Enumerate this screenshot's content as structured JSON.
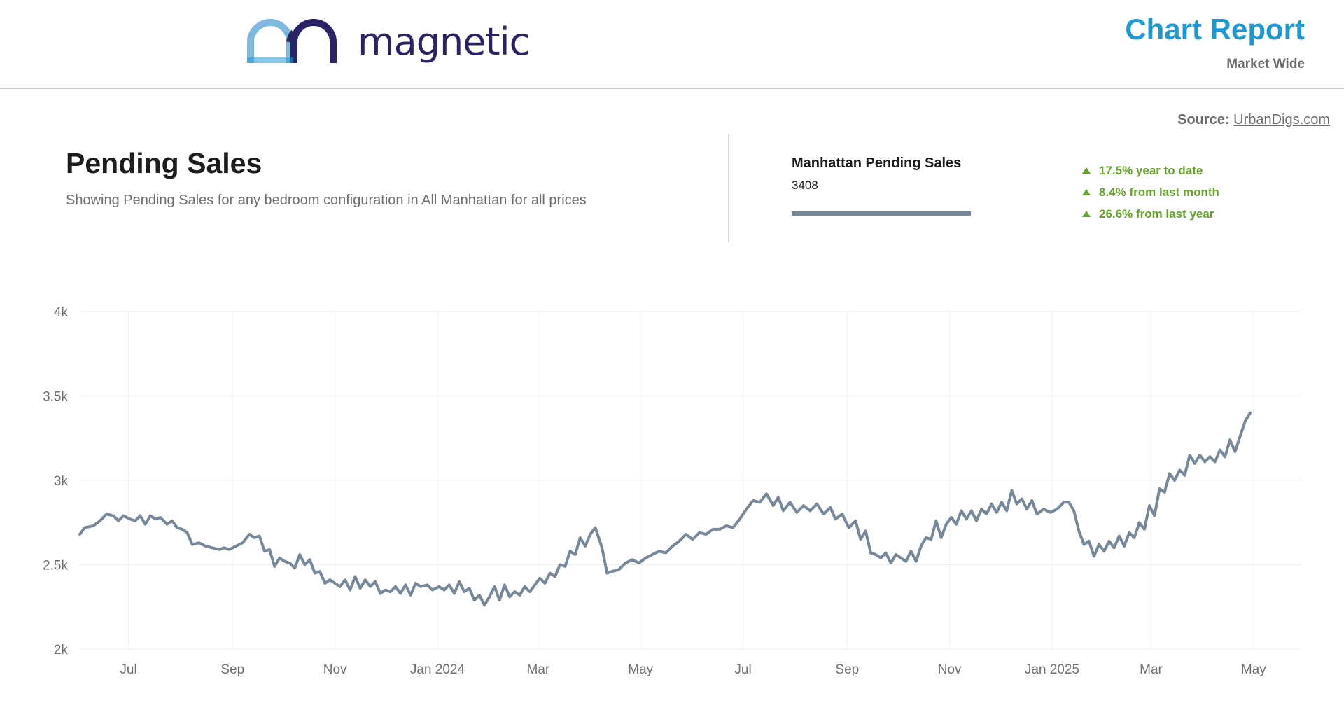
{
  "header": {
    "logo_text": "magnetic",
    "report_title": "Chart Report",
    "report_subtitle": "Market Wide"
  },
  "source": {
    "label": "Source:",
    "link": "UrbanDigs.com"
  },
  "page": {
    "title": "Pending Sales",
    "subtitle": "Showing Pending Sales for any bedroom configuration in All Manhattan for all prices"
  },
  "summary": {
    "series_name": "Manhattan Pending Sales",
    "series_value": "3408",
    "series_color": "#76889a",
    "stats": [
      "17.5% year to date",
      "8.4% from last month",
      "26.6% from last year"
    ],
    "stat_color": "#63a52b"
  },
  "colors": {
    "brand": "#2a2466",
    "accent": "#1d9ad1",
    "logo_light": "#7fb8e1"
  },
  "chart_data": {
    "type": "line",
    "ylim": [
      2000,
      4000
    ],
    "yticks": [
      {
        "value": 2000,
        "label": "2k"
      },
      {
        "value": 2500,
        "label": "2.5k"
      },
      {
        "value": 3000,
        "label": "3k"
      },
      {
        "value": 3500,
        "label": "3.5k"
      },
      {
        "value": 4000,
        "label": "4k"
      }
    ],
    "xlim": [
      "2023-06-02",
      "2025-05-29"
    ],
    "xticks": [
      {
        "date": "2023-07-01",
        "label": "Jul"
      },
      {
        "date": "2023-09-01",
        "label": "Sep"
      },
      {
        "date": "2023-11-01",
        "label": "Nov"
      },
      {
        "date": "2024-01-01",
        "label": "Jan 2024"
      },
      {
        "date": "2024-03-01",
        "label": "Mar"
      },
      {
        "date": "2024-05-01",
        "label": "May"
      },
      {
        "date": "2024-07-01",
        "label": "Jul"
      },
      {
        "date": "2024-09-01",
        "label": "Sep"
      },
      {
        "date": "2024-11-01",
        "label": "Nov"
      },
      {
        "date": "2025-01-01",
        "label": "Jan 2025"
      },
      {
        "date": "2025-03-01",
        "label": "Mar"
      },
      {
        "date": "2025-05-01",
        "label": "May"
      }
    ],
    "grid": true,
    "series": [
      {
        "color": "#76889a",
        "points": [
          [
            "2023-06-02",
            2680
          ],
          [
            "2023-06-05",
            2720
          ],
          [
            "2023-06-10",
            2730
          ],
          [
            "2023-06-14",
            2760
          ],
          [
            "2023-06-18",
            2800
          ],
          [
            "2023-06-22",
            2790
          ],
          [
            "2023-06-25",
            2760
          ],
          [
            "2023-06-28",
            2790
          ],
          [
            "2023-07-02",
            2770
          ],
          [
            "2023-07-05",
            2760
          ],
          [
            "2023-07-08",
            2790
          ],
          [
            "2023-07-11",
            2740
          ],
          [
            "2023-07-14",
            2790
          ],
          [
            "2023-07-17",
            2770
          ],
          [
            "2023-07-20",
            2780
          ],
          [
            "2023-07-24",
            2740
          ],
          [
            "2023-07-27",
            2760
          ],
          [
            "2023-07-30",
            2720
          ],
          [
            "2023-08-02",
            2710
          ],
          [
            "2023-08-05",
            2690
          ],
          [
            "2023-08-08",
            2620
          ],
          [
            "2023-08-12",
            2630
          ],
          [
            "2023-08-16",
            2610
          ],
          [
            "2023-08-20",
            2600
          ],
          [
            "2023-08-24",
            2590
          ],
          [
            "2023-08-27",
            2600
          ],
          [
            "2023-08-30",
            2590
          ],
          [
            "2023-09-03",
            2610
          ],
          [
            "2023-09-07",
            2630
          ],
          [
            "2023-09-11",
            2680
          ],
          [
            "2023-09-14",
            2660
          ],
          [
            "2023-09-17",
            2670
          ],
          [
            "2023-09-20",
            2580
          ],
          [
            "2023-09-23",
            2590
          ],
          [
            "2023-09-26",
            2490
          ],
          [
            "2023-09-29",
            2540
          ],
          [
            "2023-10-02",
            2520
          ],
          [
            "2023-10-05",
            2510
          ],
          [
            "2023-10-08",
            2480
          ],
          [
            "2023-10-11",
            2560
          ],
          [
            "2023-10-14",
            2500
          ],
          [
            "2023-10-17",
            2530
          ],
          [
            "2023-10-20",
            2450
          ],
          [
            "2023-10-23",
            2460
          ],
          [
            "2023-10-26",
            2390
          ],
          [
            "2023-10-29",
            2410
          ],
          [
            "2023-11-01",
            2390
          ],
          [
            "2023-11-04",
            2370
          ],
          [
            "2023-11-07",
            2410
          ],
          [
            "2023-11-10",
            2350
          ],
          [
            "2023-11-13",
            2430
          ],
          [
            "2023-11-16",
            2360
          ],
          [
            "2023-11-19",
            2410
          ],
          [
            "2023-11-22",
            2370
          ],
          [
            "2023-11-25",
            2400
          ],
          [
            "2023-11-28",
            2330
          ],
          [
            "2023-12-01",
            2350
          ],
          [
            "2023-12-04",
            2340
          ],
          [
            "2023-12-07",
            2370
          ],
          [
            "2023-12-10",
            2330
          ],
          [
            "2023-12-13",
            2380
          ],
          [
            "2023-12-16",
            2320
          ],
          [
            "2023-12-19",
            2390
          ],
          [
            "2023-12-22",
            2370
          ],
          [
            "2023-12-26",
            2380
          ],
          [
            "2023-12-29",
            2350
          ],
          [
            "2024-01-02",
            2370
          ],
          [
            "2024-01-05",
            2350
          ],
          [
            "2024-01-08",
            2380
          ],
          [
            "2024-01-11",
            2330
          ],
          [
            "2024-01-14",
            2400
          ],
          [
            "2024-01-17",
            2340
          ],
          [
            "2024-01-20",
            2360
          ],
          [
            "2024-01-23",
            2290
          ],
          [
            "2024-01-26",
            2320
          ],
          [
            "2024-01-29",
            2260
          ],
          [
            "2024-02-01",
            2310
          ],
          [
            "2024-02-04",
            2370
          ],
          [
            "2024-02-07",
            2290
          ],
          [
            "2024-02-10",
            2380
          ],
          [
            "2024-02-13",
            2310
          ],
          [
            "2024-02-16",
            2340
          ],
          [
            "2024-02-19",
            2320
          ],
          [
            "2024-02-22",
            2370
          ],
          [
            "2024-02-25",
            2340
          ],
          [
            "2024-02-28",
            2380
          ],
          [
            "2024-03-02",
            2420
          ],
          [
            "2024-03-05",
            2390
          ],
          [
            "2024-03-08",
            2450
          ],
          [
            "2024-03-11",
            2430
          ],
          [
            "2024-03-14",
            2500
          ],
          [
            "2024-03-17",
            2490
          ],
          [
            "2024-03-20",
            2580
          ],
          [
            "2024-03-23",
            2560
          ],
          [
            "2024-03-26",
            2660
          ],
          [
            "2024-03-29",
            2610
          ],
          [
            "2024-04-01",
            2680
          ],
          [
            "2024-04-04",
            2720
          ],
          [
            "2024-04-08",
            2600
          ],
          [
            "2024-04-11",
            2450
          ],
          [
            "2024-04-14",
            2460
          ],
          [
            "2024-04-18",
            2470
          ],
          [
            "2024-04-22",
            2510
          ],
          [
            "2024-04-26",
            2530
          ],
          [
            "2024-04-30",
            2510
          ],
          [
            "2024-05-04",
            2540
          ],
          [
            "2024-05-08",
            2560
          ],
          [
            "2024-05-12",
            2580
          ],
          [
            "2024-05-16",
            2570
          ],
          [
            "2024-05-20",
            2610
          ],
          [
            "2024-05-24",
            2640
          ],
          [
            "2024-05-28",
            2680
          ],
          [
            "2024-06-01",
            2650
          ],
          [
            "2024-06-05",
            2690
          ],
          [
            "2024-06-09",
            2680
          ],
          [
            "2024-06-13",
            2710
          ],
          [
            "2024-06-17",
            2710
          ],
          [
            "2024-06-21",
            2730
          ],
          [
            "2024-06-25",
            2720
          ],
          [
            "2024-06-29",
            2770
          ],
          [
            "2024-07-03",
            2830
          ],
          [
            "2024-07-07",
            2880
          ],
          [
            "2024-07-11",
            2870
          ],
          [
            "2024-07-15",
            2920
          ],
          [
            "2024-07-19",
            2850
          ],
          [
            "2024-07-22",
            2900
          ],
          [
            "2024-07-25",
            2820
          ],
          [
            "2024-07-29",
            2870
          ],
          [
            "2024-08-02",
            2810
          ],
          [
            "2024-08-06",
            2850
          ],
          [
            "2024-08-10",
            2820
          ],
          [
            "2024-08-14",
            2860
          ],
          [
            "2024-08-18",
            2800
          ],
          [
            "2024-08-22",
            2840
          ],
          [
            "2024-08-25",
            2770
          ],
          [
            "2024-08-29",
            2800
          ],
          [
            "2024-09-02",
            2720
          ],
          [
            "2024-09-06",
            2760
          ],
          [
            "2024-09-09",
            2650
          ],
          [
            "2024-09-12",
            2700
          ],
          [
            "2024-09-15",
            2570
          ],
          [
            "2024-09-18",
            2560
          ],
          [
            "2024-09-21",
            2540
          ],
          [
            "2024-09-24",
            2570
          ],
          [
            "2024-09-27",
            2510
          ],
          [
            "2024-09-30",
            2560
          ],
          [
            "2024-10-03",
            2540
          ],
          [
            "2024-10-06",
            2520
          ],
          [
            "2024-10-09",
            2580
          ],
          [
            "2024-10-12",
            2520
          ],
          [
            "2024-10-15",
            2610
          ],
          [
            "2024-10-18",
            2660
          ],
          [
            "2024-10-21",
            2650
          ],
          [
            "2024-10-24",
            2760
          ],
          [
            "2024-10-27",
            2660
          ],
          [
            "2024-10-30",
            2740
          ],
          [
            "2024-11-02",
            2780
          ],
          [
            "2024-11-05",
            2740
          ],
          [
            "2024-11-08",
            2820
          ],
          [
            "2024-11-11",
            2770
          ],
          [
            "2024-11-14",
            2820
          ],
          [
            "2024-11-17",
            2760
          ],
          [
            "2024-11-20",
            2830
          ],
          [
            "2024-11-23",
            2800
          ],
          [
            "2024-11-26",
            2860
          ],
          [
            "2024-11-29",
            2810
          ],
          [
            "2024-12-02",
            2870
          ],
          [
            "2024-12-05",
            2820
          ],
          [
            "2024-12-08",
            2940
          ],
          [
            "2024-12-11",
            2860
          ],
          [
            "2024-12-14",
            2890
          ],
          [
            "2024-12-17",
            2830
          ],
          [
            "2024-12-20",
            2880
          ],
          [
            "2024-12-23",
            2800
          ],
          [
            "2024-12-27",
            2830
          ],
          [
            "2024-12-31",
            2810
          ],
          [
            "2025-01-04",
            2830
          ],
          [
            "2025-01-08",
            2870
          ],
          [
            "2025-01-11",
            2870
          ],
          [
            "2025-01-14",
            2820
          ],
          [
            "2025-01-17",
            2700
          ],
          [
            "2025-01-20",
            2620
          ],
          [
            "2025-01-23",
            2640
          ],
          [
            "2025-01-26",
            2550
          ],
          [
            "2025-01-29",
            2620
          ],
          [
            "2025-02-01",
            2580
          ],
          [
            "2025-02-04",
            2640
          ],
          [
            "2025-02-07",
            2600
          ],
          [
            "2025-02-10",
            2670
          ],
          [
            "2025-02-13",
            2610
          ],
          [
            "2025-02-16",
            2690
          ],
          [
            "2025-02-19",
            2660
          ],
          [
            "2025-02-22",
            2750
          ],
          [
            "2025-02-25",
            2710
          ],
          [
            "2025-02-28",
            2850
          ],
          [
            "2025-03-03",
            2790
          ],
          [
            "2025-03-06",
            2950
          ],
          [
            "2025-03-09",
            2930
          ],
          [
            "2025-03-12",
            3040
          ],
          [
            "2025-03-15",
            3000
          ],
          [
            "2025-03-18",
            3060
          ],
          [
            "2025-03-21",
            3030
          ],
          [
            "2025-03-24",
            3150
          ],
          [
            "2025-03-27",
            3100
          ],
          [
            "2025-03-30",
            3150
          ],
          [
            "2025-04-02",
            3110
          ],
          [
            "2025-04-05",
            3140
          ],
          [
            "2025-04-08",
            3110
          ],
          [
            "2025-04-11",
            3180
          ],
          [
            "2025-04-14",
            3140
          ],
          [
            "2025-04-17",
            3240
          ],
          [
            "2025-04-20",
            3170
          ],
          [
            "2025-04-23",
            3260
          ],
          [
            "2025-04-26",
            3350
          ],
          [
            "2025-04-29",
            3400
          ]
        ]
      }
    ]
  }
}
